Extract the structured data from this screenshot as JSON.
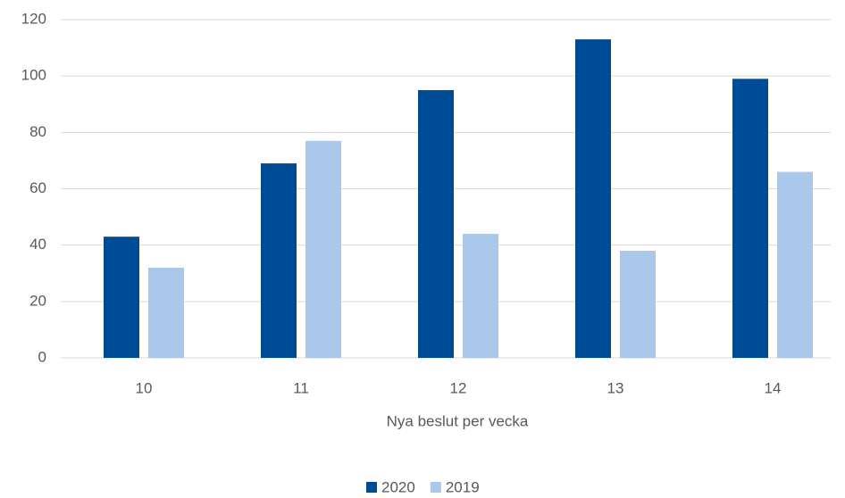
{
  "chart_data": {
    "type": "bar",
    "categories": [
      "10",
      "11",
      "12",
      "13",
      "14"
    ],
    "series": [
      {
        "name": "2020",
        "color": "#004b96",
        "values": [
          43,
          69,
          95,
          113,
          99
        ]
      },
      {
        "name": "2019",
        "color": "#a9c8ea",
        "values": [
          32,
          77,
          44,
          38,
          66
        ]
      }
    ],
    "x_label": "Nya beslut per vecka",
    "ylim": [
      0,
      120
    ],
    "yticks": [
      0,
      20,
      40,
      60,
      80,
      100,
      120
    ],
    "grid": true,
    "legend": "bottom"
  }
}
